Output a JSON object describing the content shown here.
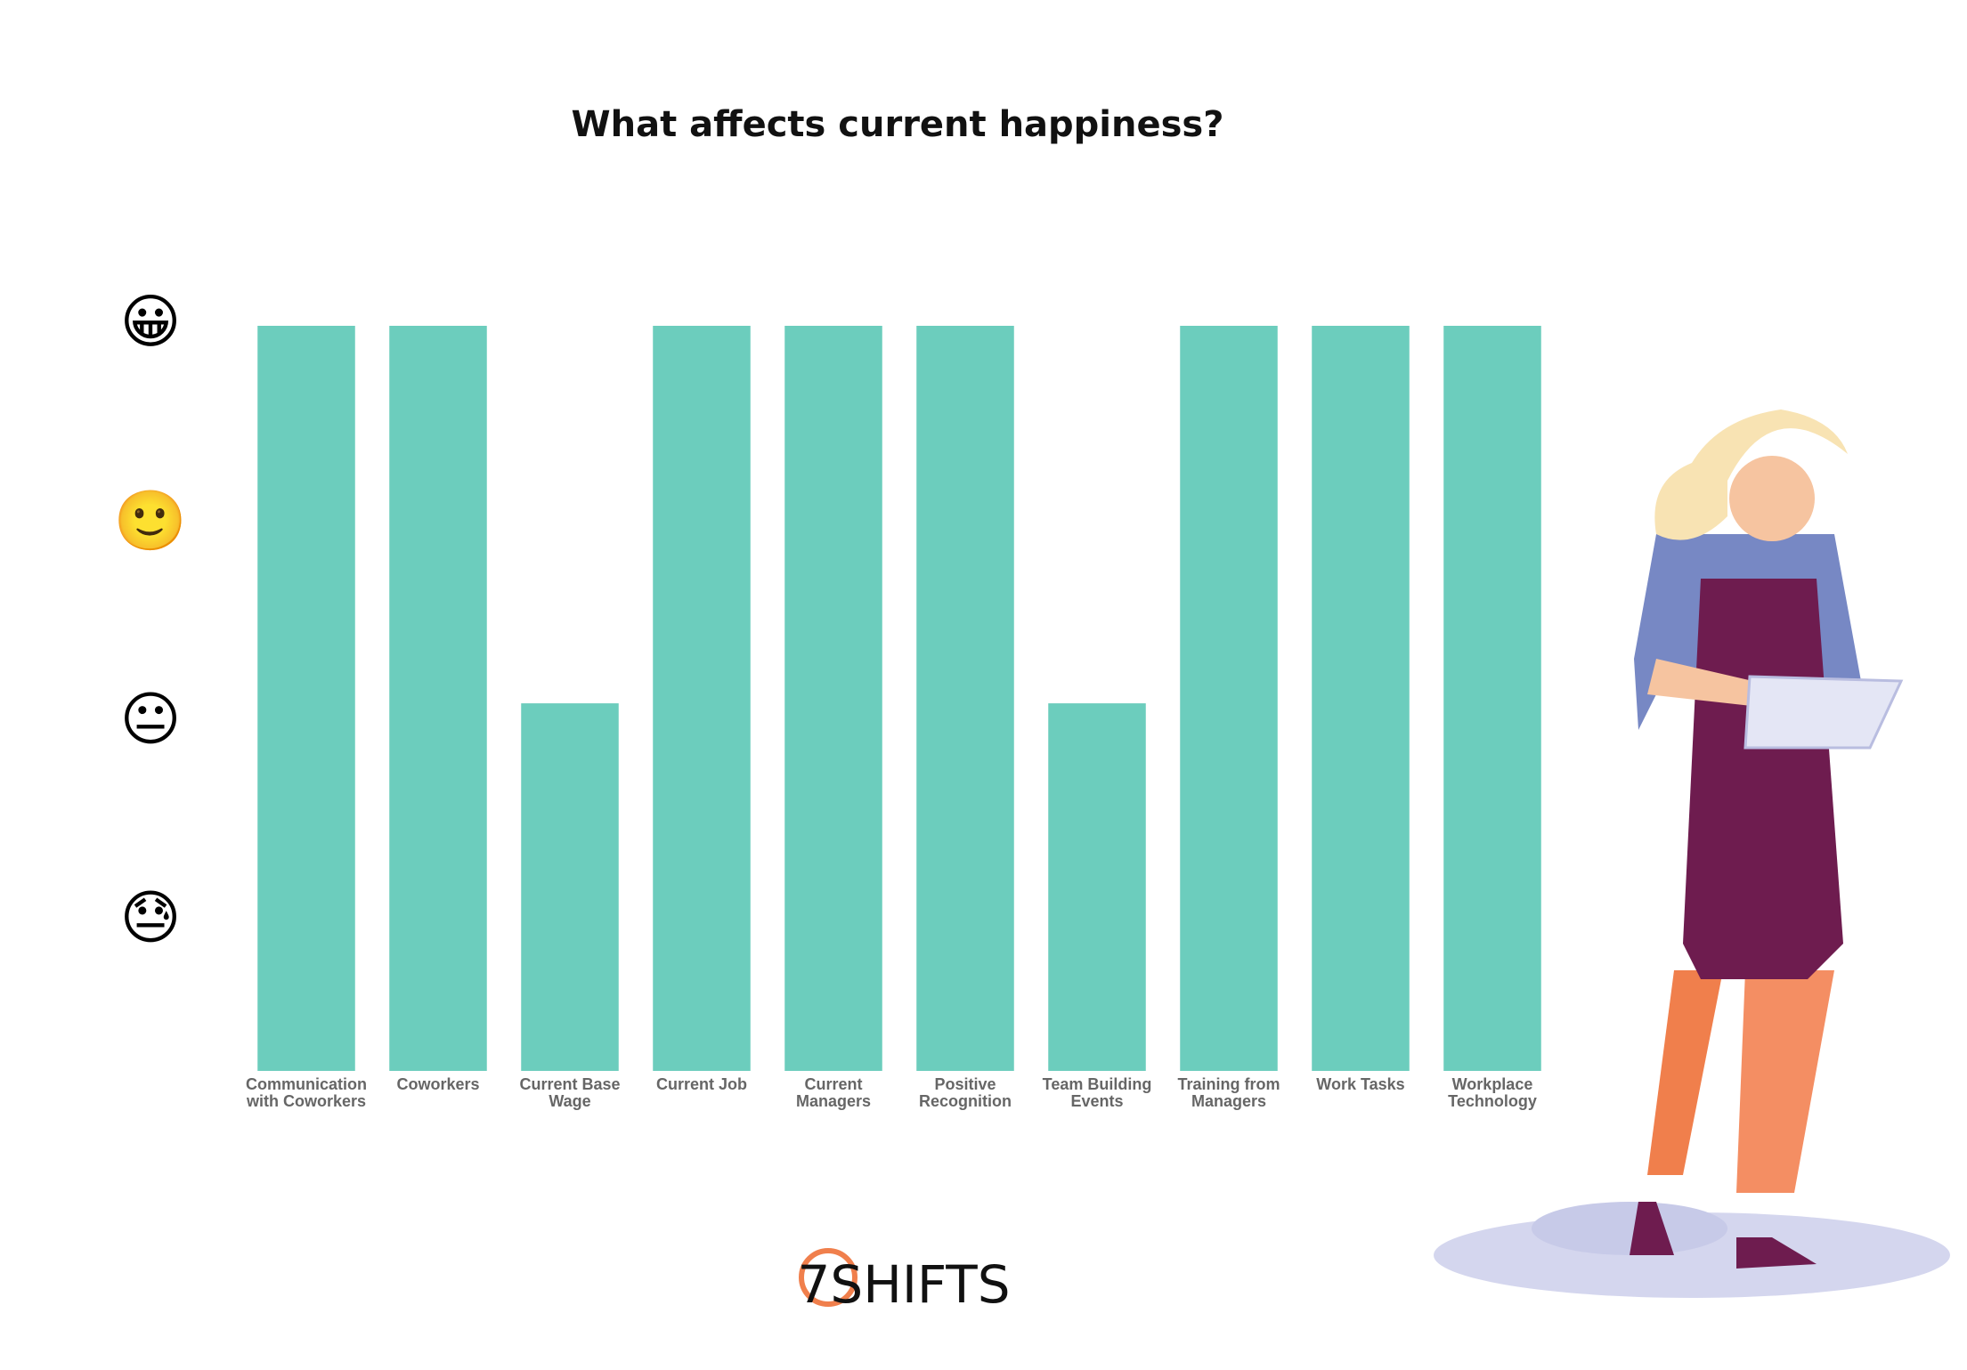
{
  "chart_data": {
    "type": "bar",
    "title": "What affects current happiness?",
    "categories": [
      "Communication with Coworkers",
      "Coworkers",
      "Current Base Wage",
      "Current Job",
      "Current Managers",
      "Positive Recognition",
      "Team Building Events",
      "Training from Managers",
      "Work Tasks",
      "Workplace Technology"
    ],
    "values": [
      4,
      4,
      2.1,
      4,
      4,
      4,
      2.1,
      4,
      4,
      4
    ],
    "color": "#6ccdbd",
    "ylim": [
      0.25,
      4
    ],
    "yticks": [
      {
        "value": 1,
        "label": "😓"
      },
      {
        "value": 2,
        "label": "😐"
      },
      {
        "value": 3,
        "label": "🙂"
      },
      {
        "value": 4,
        "label": "😀"
      }
    ],
    "grid": false
  },
  "logo": "7SHIFTS"
}
